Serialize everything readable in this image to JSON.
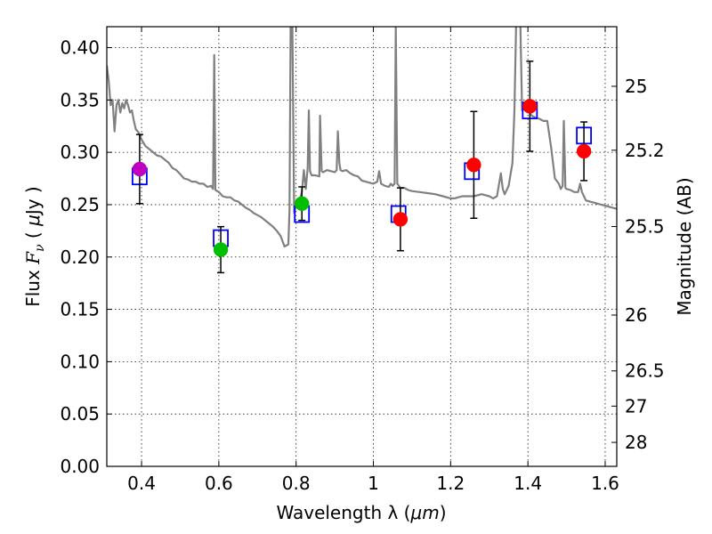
{
  "chart_data": {
    "type": "scatter",
    "title": "",
    "xlabel_prefix": "Wavelength  λ (",
    "xlabel_unit": "μm",
    "xlabel_suffix": ")",
    "ylabel_prefix": "Flux  ",
    "ylabel_symbol": "F",
    "ylabel_sub": "ν",
    "ylabel_mid": "  ( ",
    "ylabel_unit": "μ",
    "ylabel_suffix": "Jy )",
    "y2label": "Magnitude (AB)",
    "xlim": [
      0.31,
      1.63
    ],
    "ylim": [
      0.0,
      0.42
    ],
    "grid": true,
    "x_ticks": [
      {
        "value": 0.4,
        "label": "0.4"
      },
      {
        "value": 0.6,
        "label": "0.6"
      },
      {
        "value": 0.8,
        "label": "0.8"
      },
      {
        "value": 1.0,
        "label": "1"
      },
      {
        "value": 1.2,
        "label": "1.2"
      },
      {
        "value": 1.4,
        "label": "1.4"
      },
      {
        "value": 1.6,
        "label": "1.6"
      }
    ],
    "y_ticks": [
      {
        "value": 0.0,
        "label": "0.00"
      },
      {
        "value": 0.05,
        "label": "0.05"
      },
      {
        "value": 0.1,
        "label": "0.10"
      },
      {
        "value": 0.15,
        "label": "0.15"
      },
      {
        "value": 0.2,
        "label": "0.20"
      },
      {
        "value": 0.25,
        "label": "0.25"
      },
      {
        "value": 0.3,
        "label": "0.30"
      },
      {
        "value": 0.35,
        "label": "0.35"
      },
      {
        "value": 0.4,
        "label": "0.40"
      }
    ],
    "y2_ticks": [
      {
        "value": 25,
        "label": "25"
      },
      {
        "value": 25.2,
        "label": "25.2"
      },
      {
        "value": 25.5,
        "label": "25.5"
      },
      {
        "value": 26,
        "label": "26"
      },
      {
        "value": 26.5,
        "label": "26.5"
      },
      {
        "value": 27,
        "label": "27"
      },
      {
        "value": 28,
        "label": "28"
      }
    ],
    "observed": [
      {
        "x": 0.395,
        "y": 0.284,
        "err": 0.033,
        "color": "#bf00bf"
      },
      {
        "x": 0.605,
        "y": 0.207,
        "err": 0.022,
        "color": "#00bf00"
      },
      {
        "x": 0.815,
        "y": 0.251,
        "err": 0.016,
        "color": "#00bf00"
      },
      {
        "x": 1.07,
        "y": 0.236,
        "err": 0.03,
        "color": "#ff0000"
      },
      {
        "x": 1.26,
        "y": 0.288,
        "err": 0.051,
        "color": "#ff0000"
      },
      {
        "x": 1.405,
        "y": 0.344,
        "err": 0.043,
        "color": "#ff0000"
      },
      {
        "x": 1.545,
        "y": 0.301,
        "err": 0.028,
        "color": "#ff0000"
      }
    ],
    "model_points": [
      {
        "x": 0.395,
        "y": 0.277
      },
      {
        "x": 0.605,
        "y": 0.218
      },
      {
        "x": 0.815,
        "y": 0.241
      },
      {
        "x": 1.065,
        "y": 0.241
      },
      {
        "x": 1.255,
        "y": 0.282
      },
      {
        "x": 1.405,
        "y": 0.34
      },
      {
        "x": 1.545,
        "y": 0.316
      }
    ],
    "sed_curve": {
      "color": "#808080",
      "points": [
        [
          0.31,
          0.383
        ],
        [
          0.315,
          0.368
        ],
        [
          0.32,
          0.345
        ],
        [
          0.325,
          0.35
        ],
        [
          0.33,
          0.32
        ],
        [
          0.335,
          0.345
        ],
        [
          0.34,
          0.35
        ],
        [
          0.345,
          0.338
        ],
        [
          0.35,
          0.347
        ],
        [
          0.355,
          0.342
        ],
        [
          0.36,
          0.35
        ],
        [
          0.365,
          0.345
        ],
        [
          0.37,
          0.338
        ],
        [
          0.375,
          0.34
        ],
        [
          0.38,
          0.33
        ],
        [
          0.385,
          0.322
        ],
        [
          0.39,
          0.32
        ],
        [
          0.395,
          0.317
        ],
        [
          0.4,
          0.312
        ],
        [
          0.41,
          0.306
        ],
        [
          0.42,
          0.303
        ],
        [
          0.43,
          0.3
        ],
        [
          0.44,
          0.297
        ],
        [
          0.45,
          0.296
        ],
        [
          0.46,
          0.293
        ],
        [
          0.47,
          0.29
        ],
        [
          0.48,
          0.285
        ],
        [
          0.49,
          0.283
        ],
        [
          0.5,
          0.279
        ],
        [
          0.51,
          0.275
        ],
        [
          0.52,
          0.274
        ],
        [
          0.53,
          0.272
        ],
        [
          0.54,
          0.272
        ],
        [
          0.55,
          0.27
        ],
        [
          0.56,
          0.27
        ],
        [
          0.57,
          0.267
        ],
        [
          0.58,
          0.268
        ],
        [
          0.585,
          0.265
        ],
        [
          0.588,
          0.393
        ],
        [
          0.591,
          0.264
        ],
        [
          0.6,
          0.262
        ],
        [
          0.61,
          0.258
        ],
        [
          0.62,
          0.257
        ],
        [
          0.63,
          0.257
        ],
        [
          0.64,
          0.254
        ],
        [
          0.65,
          0.253
        ],
        [
          0.66,
          0.25
        ],
        [
          0.67,
          0.247
        ],
        [
          0.68,
          0.245
        ],
        [
          0.69,
          0.242
        ],
        [
          0.7,
          0.24
        ],
        [
          0.71,
          0.238
        ],
        [
          0.72,
          0.235
        ],
        [
          0.73,
          0.232
        ],
        [
          0.74,
          0.229
        ],
        [
          0.75,
          0.225
        ],
        [
          0.76,
          0.22
        ],
        [
          0.77,
          0.21
        ],
        [
          0.78,
          0.212
        ],
        [
          0.783,
          0.245
        ],
        [
          0.786,
          0.43
        ],
        [
          0.79,
          0.43
        ],
        [
          0.795,
          0.242
        ],
        [
          0.8,
          0.25
        ],
        [
          0.81,
          0.255
        ],
        [
          0.815,
          0.262
        ],
        [
          0.82,
          0.283
        ],
        [
          0.825,
          0.265
        ],
        [
          0.83,
          0.285
        ],
        [
          0.833,
          0.34
        ],
        [
          0.836,
          0.282
        ],
        [
          0.84,
          0.278
        ],
        [
          0.85,
          0.278
        ],
        [
          0.86,
          0.277
        ],
        [
          0.862,
          0.335
        ],
        [
          0.866,
          0.282
        ],
        [
          0.87,
          0.281
        ],
        [
          0.88,
          0.283
        ],
        [
          0.89,
          0.282
        ],
        [
          0.9,
          0.281
        ],
        [
          0.905,
          0.283
        ],
        [
          0.908,
          0.32
        ],
        [
          0.912,
          0.29
        ],
        [
          0.915,
          0.283
        ],
        [
          0.92,
          0.282
        ],
        [
          0.93,
          0.283
        ],
        [
          0.94,
          0.28
        ],
        [
          0.95,
          0.278
        ],
        [
          0.96,
          0.277
        ],
        [
          0.97,
          0.273
        ],
        [
          0.98,
          0.272
        ],
        [
          0.99,
          0.271
        ],
        [
          1.0,
          0.27
        ],
        [
          1.01,
          0.272
        ],
        [
          1.015,
          0.282
        ],
        [
          1.02,
          0.27
        ],
        [
          1.03,
          0.268
        ],
        [
          1.04,
          0.267
        ],
        [
          1.045,
          0.27
        ],
        [
          1.05,
          0.268
        ],
        [
          1.055,
          0.27
        ],
        [
          1.058,
          0.42
        ],
        [
          1.062,
          0.27
        ],
        [
          1.07,
          0.266
        ],
        [
          1.08,
          0.266
        ],
        [
          1.09,
          0.264
        ],
        [
          1.1,
          0.263
        ],
        [
          1.12,
          0.262
        ],
        [
          1.14,
          0.261
        ],
        [
          1.16,
          0.26
        ],
        [
          1.18,
          0.258
        ],
        [
          1.2,
          0.256
        ],
        [
          1.21,
          0.256
        ],
        [
          1.22,
          0.257
        ],
        [
          1.23,
          0.258
        ],
        [
          1.24,
          0.258
        ],
        [
          1.26,
          0.258
        ],
        [
          1.28,
          0.26
        ],
        [
          1.3,
          0.258
        ],
        [
          1.31,
          0.256
        ],
        [
          1.32,
          0.258
        ],
        [
          1.33,
          0.28
        ],
        [
          1.335,
          0.265
        ],
        [
          1.34,
          0.26
        ],
        [
          1.35,
          0.268
        ],
        [
          1.36,
          0.29
        ],
        [
          1.365,
          0.34
        ],
        [
          1.37,
          0.43
        ],
        [
          1.38,
          0.43
        ],
        [
          1.385,
          0.34
        ],
        [
          1.39,
          0.342
        ],
        [
          1.4,
          0.34
        ],
        [
          1.41,
          0.335
        ],
        [
          1.42,
          0.333
        ],
        [
          1.43,
          0.332
        ],
        [
          1.44,
          0.33
        ],
        [
          1.45,
          0.33
        ],
        [
          1.46,
          0.305
        ],
        [
          1.47,
          0.275
        ],
        [
          1.48,
          0.27
        ],
        [
          1.485,
          0.265
        ],
        [
          1.49,
          0.268
        ],
        [
          1.493,
          0.33
        ],
        [
          1.497,
          0.266
        ],
        [
          1.5,
          0.265
        ],
        [
          1.51,
          0.264
        ],
        [
          1.52,
          0.262
        ],
        [
          1.53,
          0.262
        ],
        [
          1.535,
          0.27
        ],
        [
          1.54,
          0.262
        ],
        [
          1.55,
          0.254
        ],
        [
          1.56,
          0.253
        ],
        [
          1.57,
          0.252
        ],
        [
          1.58,
          0.251
        ],
        [
          1.59,
          0.25
        ],
        [
          1.6,
          0.249
        ],
        [
          1.61,
          0.248
        ],
        [
          1.62,
          0.247
        ],
        [
          1.63,
          0.246
        ]
      ]
    }
  }
}
